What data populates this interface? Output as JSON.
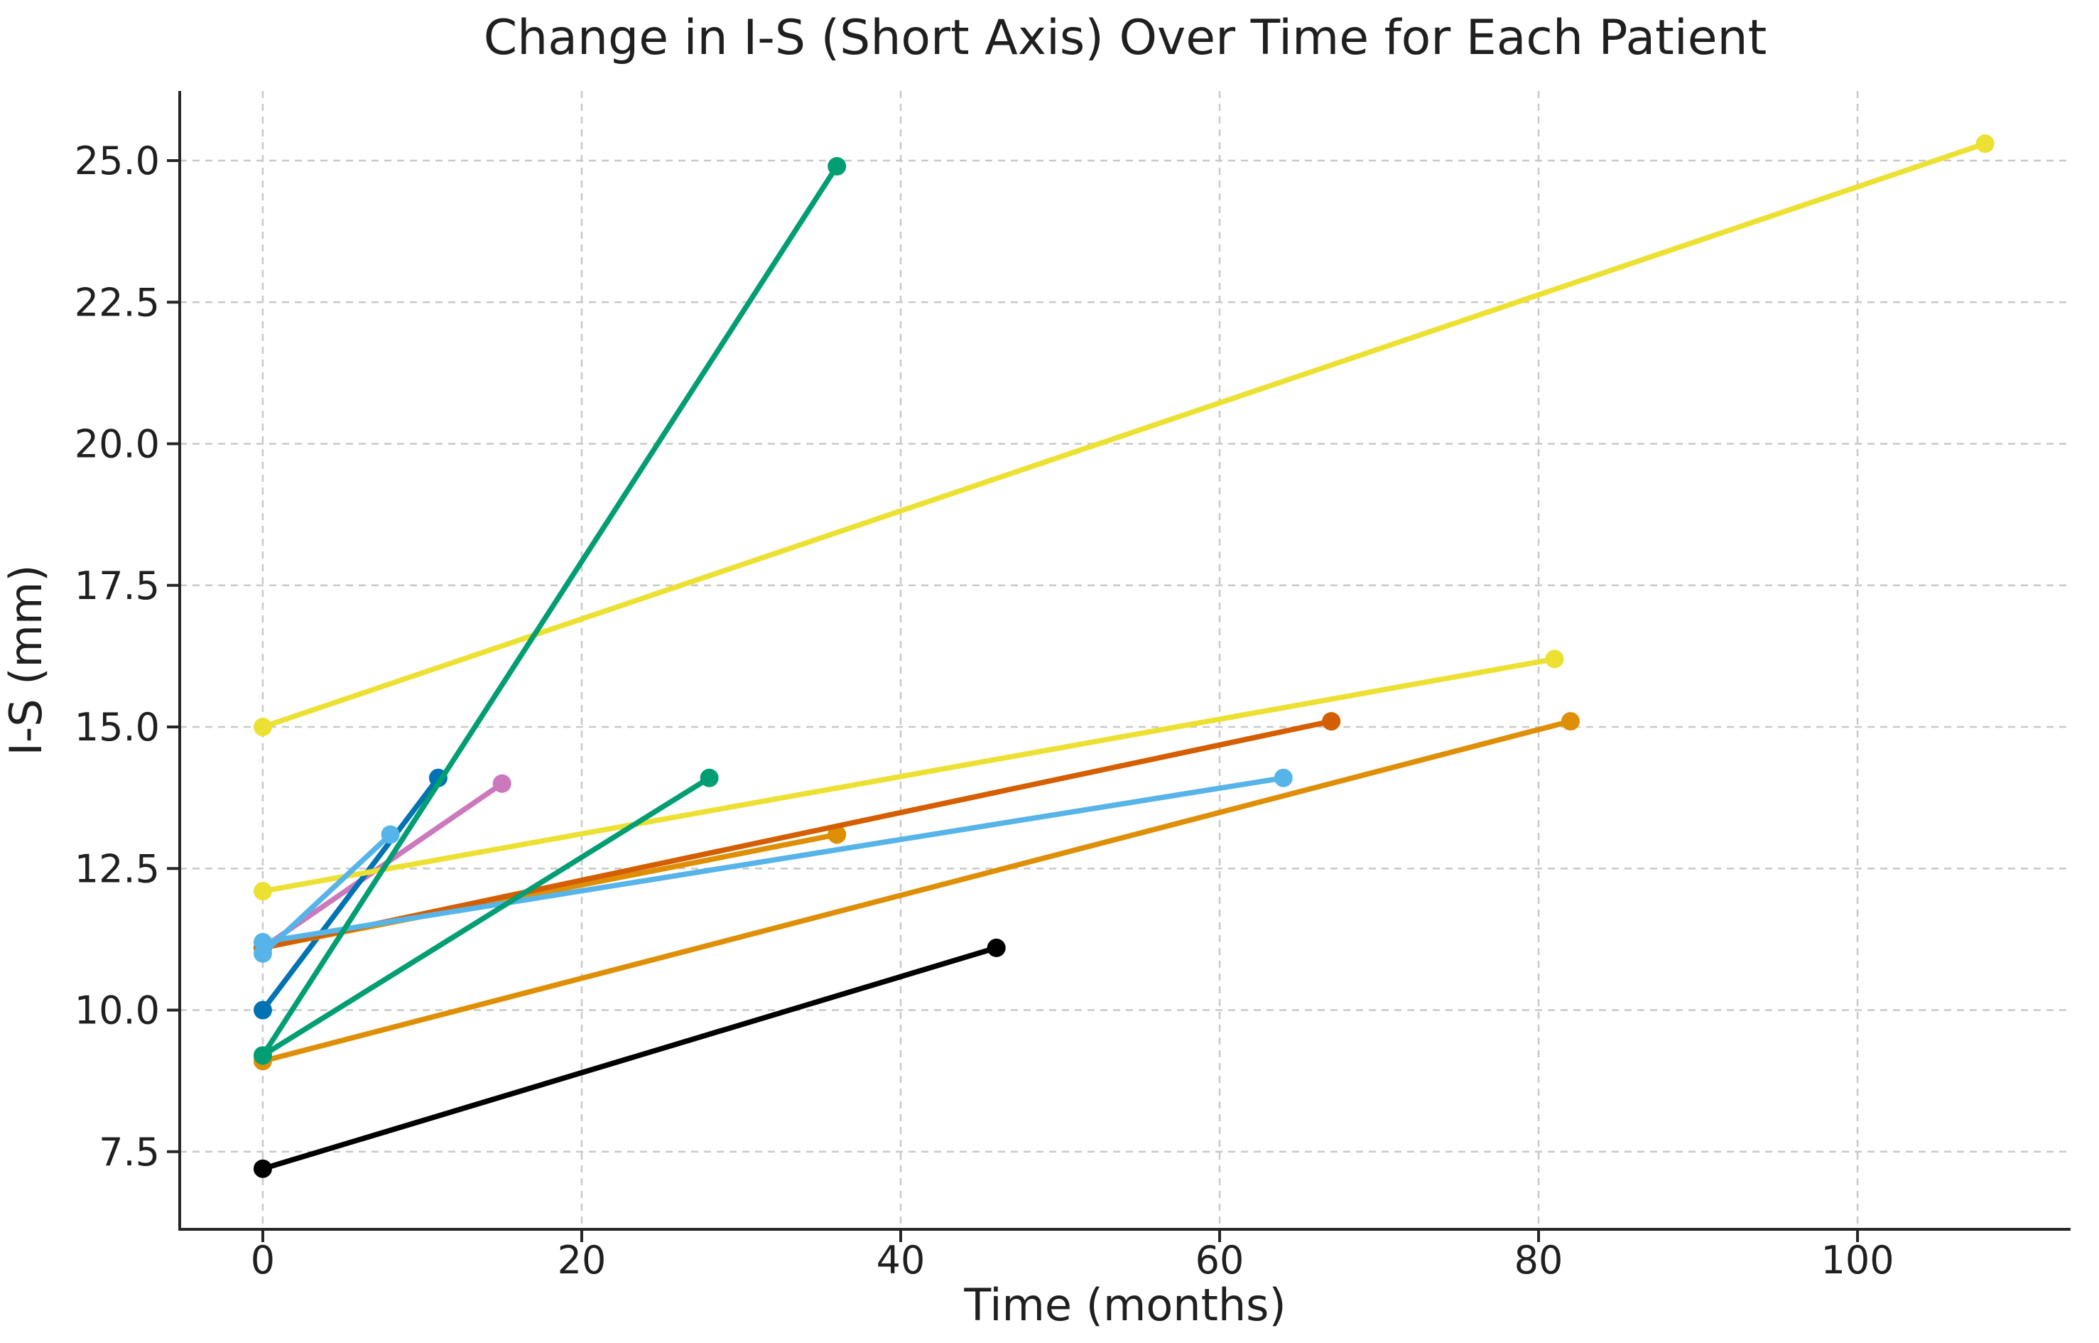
{
  "chart_data": {
    "type": "line",
    "title": "Change in I-S (Short Axis) Over Time for Each Patient",
    "xlabel": "Time (months)",
    "ylabel": "I-S (mm)",
    "xlim": [
      -5.21,
      113.36
    ],
    "ylim": [
      6.13,
      26.23
    ],
    "grid": true,
    "grid_style": "dashed",
    "legend": "none",
    "x_tick_values": [
      0,
      20,
      40,
      60,
      80,
      100
    ],
    "x_tick_labels": [
      "0",
      "20",
      "40",
      "60",
      "80",
      "100"
    ],
    "y_tick_values": [
      7.5,
      10.0,
      12.5,
      15.0,
      17.5,
      20.0,
      22.5,
      25.0
    ],
    "y_tick_labels": [
      "7.5",
      "10.0",
      "12.5",
      "15.0",
      "17.5",
      "20.0",
      "22.5",
      "25.0"
    ],
    "series": [
      {
        "name": "patient-line-pink",
        "color": "#cc78bc",
        "x": [
          0,
          15
        ],
        "y": [
          11.1,
          14.0
        ]
      },
      {
        "name": "patient-line-darkblue",
        "color": "#0173b2",
        "x": [
          0,
          11
        ],
        "y": [
          10.0,
          14.1
        ]
      },
      {
        "name": "patient-line-amber-short",
        "color": "#de8f05",
        "x": [
          0,
          36
        ],
        "y": [
          11.1,
          13.1
        ]
      },
      {
        "name": "patient-line-vermillion",
        "color": "#d55e00",
        "x": [
          0,
          67
        ],
        "y": [
          11.1,
          15.1
        ]
      },
      {
        "name": "patient-line-yellow-low",
        "color": "#ece133",
        "x": [
          0,
          81
        ],
        "y": [
          12.1,
          16.2
        ]
      },
      {
        "name": "patient-line-yellow-high",
        "color": "#ece133",
        "x": [
          0,
          108
        ],
        "y": [
          15.0,
          25.3
        ]
      },
      {
        "name": "patient-line-amber-long",
        "color": "#de8f05",
        "x": [
          0,
          82
        ],
        "y": [
          9.1,
          15.1
        ]
      },
      {
        "name": "patient-line-lightblue-long",
        "color": "#56b4e9",
        "x": [
          0,
          64
        ],
        "y": [
          11.2,
          14.1
        ]
      },
      {
        "name": "patient-line-lightblue-short",
        "color": "#56b4e9",
        "x": [
          0,
          8
        ],
        "y": [
          11.0,
          13.1
        ]
      },
      {
        "name": "patient-line-green-steep",
        "color": "#029e73",
        "x": [
          0,
          36
        ],
        "y": [
          9.2,
          24.9
        ]
      },
      {
        "name": "patient-line-green-shallow",
        "color": "#029e73",
        "x": [
          0,
          28
        ],
        "y": [
          9.2,
          14.1
        ]
      },
      {
        "name": "patient-line-black",
        "color": "#000000",
        "x": [
          0,
          46
        ],
        "y": [
          7.2,
          11.1
        ]
      }
    ],
    "style": {
      "spine_color": "#262626",
      "grid_color": "#c9c9c9",
      "background": "#ffffff",
      "line_width": 7.5,
      "marker_radius": 13
    }
  }
}
